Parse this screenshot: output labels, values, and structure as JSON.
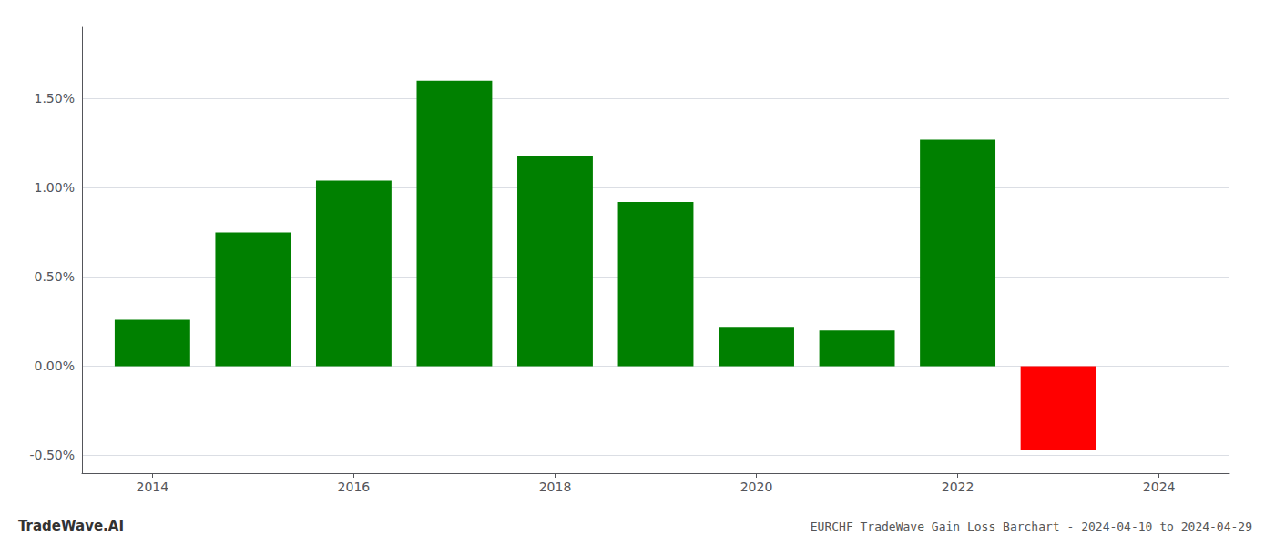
{
  "chart_data": {
    "type": "bar",
    "title": "EURCHF TradeWave Gain Loss Barchart - 2024-04-10 to 2024-04-29",
    "annotations": [
      "TradeWave.AI"
    ],
    "x": [
      2014,
      2015,
      2016,
      2017,
      2018,
      2019,
      2020,
      2021,
      2022,
      2023
    ],
    "values": [
      0.0026,
      0.0075,
      0.0104,
      0.016,
      0.0118,
      0.0092,
      0.0022,
      0.002,
      0.0127,
      -0.0047
    ],
    "colors": [
      "#008000",
      "#008000",
      "#008000",
      "#008000",
      "#008000",
      "#008000",
      "#008000",
      "#008000",
      "#008000",
      "#ff0000"
    ],
    "xlim": [
      2013.3,
      2024.7
    ],
    "xticks": [
      2014,
      2016,
      2018,
      2020,
      2022,
      2024
    ],
    "ylim": [
      -0.006,
      0.019
    ],
    "yticks": [
      {
        "value": -0.005,
        "label": "-0.50%"
      },
      {
        "value": 0.0,
        "label": "0.00%"
      },
      {
        "value": 0.005,
        "label": "0.50%"
      },
      {
        "value": 0.01,
        "label": "1.00%"
      },
      {
        "value": 0.015,
        "label": "1.50%"
      }
    ],
    "grid": true
  }
}
